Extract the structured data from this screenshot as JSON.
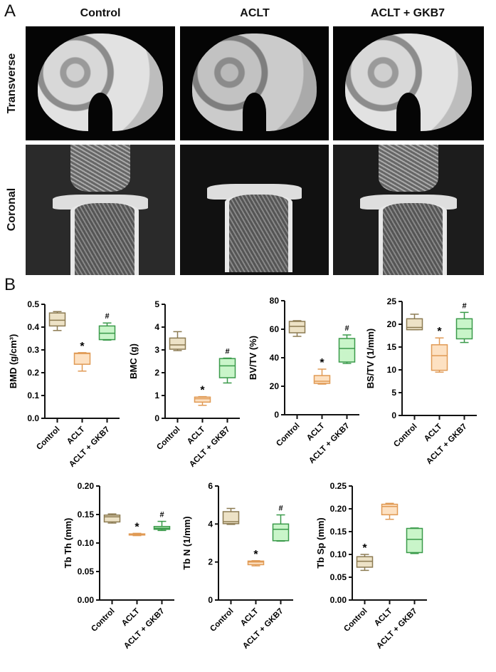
{
  "panel_a": {
    "letter": "A",
    "columns": [
      "Control",
      "ACLT",
      "ACLT + GKB7"
    ],
    "rows": [
      "Transverse",
      "Coronal"
    ]
  },
  "panel_b": {
    "letter": "B"
  },
  "colors": {
    "Control": {
      "fill": "#ede2c6",
      "stroke": "#8c7b52"
    },
    "ACLT": {
      "fill": "#fde1c2",
      "stroke": "#e09a55"
    },
    "ACLT + GKB7": {
      "fill": "#c9f5c9",
      "stroke": "#3a9a4a"
    }
  },
  "chart_data": [
    {
      "type": "box",
      "ylabel": "BMD (g/cm³)",
      "categories": [
        "Control",
        "ACLT",
        "ACLT + GKB7"
      ],
      "ylim": [
        0,
        0.5
      ],
      "yticks": [
        "0.0",
        "0.1",
        "0.2",
        "0.3",
        "0.4",
        "0.5"
      ],
      "boxes": [
        [
          0.385,
          0.405,
          0.43,
          0.462,
          0.468
        ],
        [
          0.207,
          0.237,
          0.284,
          0.286,
          0.288
        ],
        [
          0.343,
          0.345,
          0.373,
          0.405,
          0.418
        ]
      ],
      "annotations": [
        "",
        "*",
        "#"
      ]
    },
    {
      "type": "box",
      "ylabel": "BMC (g)",
      "categories": [
        "Control",
        "ACLT",
        "ACLT + GKB7"
      ],
      "ylim": [
        0,
        5
      ],
      "yticks": [
        "0",
        "1",
        "2",
        "3",
        "4",
        "5"
      ],
      "boxes": [
        [
          2.97,
          3.03,
          3.22,
          3.52,
          3.8
        ],
        [
          0.57,
          0.71,
          0.86,
          0.93,
          0.95
        ],
        [
          1.55,
          1.78,
          2.3,
          2.62,
          2.64
        ]
      ],
      "annotations": [
        "",
        "*",
        "#"
      ]
    },
    {
      "type": "box",
      "ylabel": "BV/TV (%)",
      "categories": [
        "Control",
        "ACLT",
        "ACLT + GKB7"
      ],
      "ylim": [
        0,
        80
      ],
      "yticks": [
        "0",
        "20",
        "40",
        "60",
        "80"
      ],
      "boxes": [
        [
          55,
          57.5,
          62,
          65.5,
          66
        ],
        [
          21.5,
          22,
          23.5,
          27.5,
          32
        ],
        [
          36,
          37,
          46.5,
          53.5,
          56
        ]
      ],
      "annotations": [
        "",
        "*",
        "#"
      ]
    },
    {
      "type": "box",
      "ylabel": "BS/TV (1/mm)",
      "categories": [
        "Control",
        "ACLT",
        "ACLT + GKB7"
      ],
      "ylim": [
        0,
        25
      ],
      "yticks": [
        "0",
        "5",
        "10",
        "15",
        "20",
        "25"
      ],
      "boxes": [
        [
          18.8,
          18.8,
          19.3,
          21.2,
          22.2
        ],
        [
          9.5,
          9.9,
          13.1,
          15.5,
          17
        ],
        [
          16,
          16.8,
          19,
          21.2,
          22.6
        ]
      ],
      "annotations": [
        "",
        "*",
        "#"
      ]
    },
    {
      "type": "box",
      "ylabel": "Tb Th (mm)",
      "categories": [
        "Control",
        "ACLT",
        "ACLT + GKB7"
      ],
      "ylim": [
        0,
        0.2
      ],
      "yticks": [
        "0.00",
        "0.05",
        "0.10",
        "0.15",
        "0.20"
      ],
      "boxes": [
        [
          0.135,
          0.137,
          0.146,
          0.149,
          0.151
        ],
        [
          0.113,
          0.114,
          0.115,
          0.116,
          0.117
        ],
        [
          0.122,
          0.124,
          0.126,
          0.129,
          0.138
        ]
      ],
      "annotations": [
        "",
        "*",
        "#"
      ]
    },
    {
      "type": "box",
      "ylabel": "Tb N (1/mm)",
      "categories": [
        "Control",
        "ACLT",
        "ACLT + GKB7"
      ],
      "ylim": [
        0,
        6
      ],
      "yticks": [
        "0",
        "2",
        "4",
        "6"
      ],
      "boxes": [
        [
          3.98,
          4.02,
          4.12,
          4.65,
          4.82
        ],
        [
          1.8,
          1.86,
          2.0,
          2.05,
          2.07
        ],
        [
          3.1,
          3.12,
          3.72,
          4.0,
          4.48
        ]
      ],
      "annotations": [
        "",
        "*",
        "#"
      ]
    },
    {
      "type": "box",
      "ylabel": "Tb Sp (mm)",
      "categories": [
        "Control",
        "ACLT",
        "ACLT + GKB7"
      ],
      "ylim": [
        0,
        0.25
      ],
      "yticks": [
        "0.00",
        "0.05",
        "0.10",
        "0.15",
        "0.20",
        "0.25"
      ],
      "boxes": [
        [
          0.065,
          0.072,
          0.085,
          0.095,
          0.1
        ],
        [
          0.177,
          0.187,
          0.205,
          0.21,
          0.212
        ],
        [
          0.102,
          0.104,
          0.133,
          0.157,
          0.158
        ]
      ],
      "annotations": [
        "*",
        "",
        ""
      ]
    }
  ]
}
